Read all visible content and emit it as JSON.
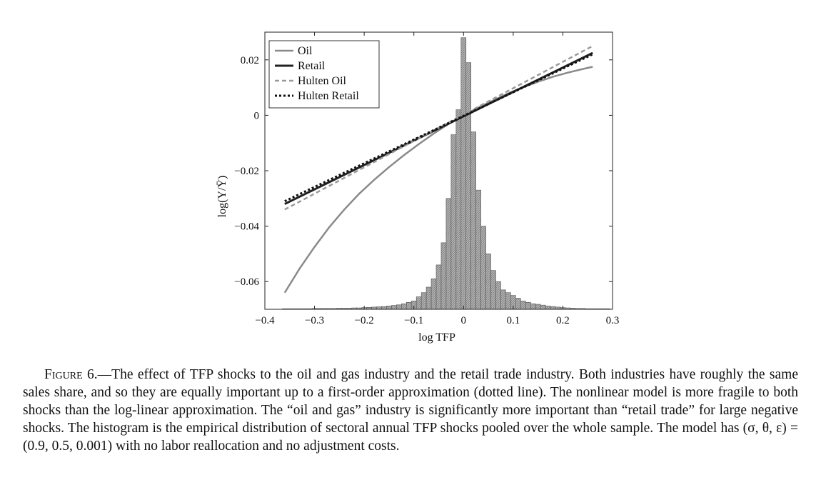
{
  "chart_data": {
    "type": "line",
    "xlabel": "log TFP",
    "ylabel": "log(Y/Ȳ)",
    "xlim": [
      -0.4,
      0.3
    ],
    "ylim": [
      -0.07,
      0.03
    ],
    "x_ticks": [
      {
        "value": -0.4,
        "label": "−0.4"
      },
      {
        "value": -0.3,
        "label": "−0.3"
      },
      {
        "value": -0.2,
        "label": "−0.2"
      },
      {
        "value": -0.1,
        "label": "−0.1"
      },
      {
        "value": 0,
        "label": "0"
      },
      {
        "value": 0.1,
        "label": "0.1"
      },
      {
        "value": 0.2,
        "label": "0.2"
      },
      {
        "value": 0.3,
        "label": "0.3"
      }
    ],
    "y_ticks": [
      {
        "value": 0.02,
        "label": "0.02"
      },
      {
        "value": 0,
        "label": "0"
      },
      {
        "value": -0.02,
        "label": "−0.02"
      },
      {
        "value": -0.04,
        "label": "−0.04"
      },
      {
        "value": -0.06,
        "label": "−0.06"
      }
    ],
    "grid": false,
    "legend_position": "top-left",
    "series": [
      {
        "name": "Oil",
        "style": "solid",
        "color": "#8a8a8a",
        "width": 2.5,
        "x": [
          -0.36,
          -0.33,
          -0.3,
          -0.27,
          -0.24,
          -0.21,
          -0.18,
          -0.15,
          -0.12,
          -0.09,
          -0.06,
          -0.03,
          0,
          0.03,
          0.06,
          0.09,
          0.12,
          0.15,
          0.18,
          0.21,
          0.24,
          0.26
        ],
        "y": [
          -0.064,
          -0.0553,
          -0.0475,
          -0.0403,
          -0.034,
          -0.0283,
          -0.0233,
          -0.0187,
          -0.0144,
          -0.0104,
          -0.0066,
          -0.0031,
          0,
          0.0028,
          0.0054,
          0.0079,
          0.0101,
          0.0121,
          0.0139,
          0.0154,
          0.0167,
          0.0175
        ]
      },
      {
        "name": "Retail",
        "style": "solid",
        "color": "#222222",
        "width": 3,
        "x": [
          -0.36,
          0.26
        ],
        "y": [
          -0.032,
          0.0225
        ]
      },
      {
        "name": "Hulten Oil",
        "style": "dashed",
        "color": "#9a9a9a",
        "width": 2.5,
        "x": [
          -0.36,
          0.26
        ],
        "y": [
          -0.034,
          0.025
        ]
      },
      {
        "name": "Hulten Retail",
        "style": "dotted",
        "color": "#111111",
        "width": 3,
        "x": [
          -0.36,
          0.26
        ],
        "y": [
          -0.031,
          0.022
        ]
      }
    ],
    "histogram": {
      "bin_width": 0.01,
      "bins": [
        [
          -0.36,
          0.0002
        ],
        [
          -0.35,
          0.0002
        ],
        [
          -0.34,
          0.0002
        ],
        [
          -0.33,
          0.0002
        ],
        [
          -0.32,
          0.0002
        ],
        [
          -0.31,
          0.0002
        ],
        [
          -0.3,
          0.0003
        ],
        [
          -0.29,
          0.0003
        ],
        [
          -0.28,
          0.0003
        ],
        [
          -0.27,
          0.0003
        ],
        [
          -0.26,
          0.0003
        ],
        [
          -0.25,
          0.0004
        ],
        [
          -0.24,
          0.0004
        ],
        [
          -0.23,
          0.0004
        ],
        [
          -0.22,
          0.0005
        ],
        [
          -0.21,
          0.0005
        ],
        [
          -0.2,
          0.0006
        ],
        [
          -0.19,
          0.0007
        ],
        [
          -0.18,
          0.0008
        ],
        [
          -0.17,
          0.0009
        ],
        [
          -0.16,
          0.001
        ],
        [
          -0.15,
          0.0012
        ],
        [
          -0.14,
          0.0014
        ],
        [
          -0.13,
          0.0016
        ],
        [
          -0.12,
          0.002
        ],
        [
          -0.11,
          0.0025
        ],
        [
          -0.1,
          0.003
        ],
        [
          -0.09,
          0.0045
        ],
        [
          -0.08,
          0.006
        ],
        [
          -0.07,
          0.008
        ],
        [
          -0.06,
          0.011
        ],
        [
          -0.05,
          0.016
        ],
        [
          -0.04,
          0.024
        ],
        [
          -0.03,
          0.04
        ],
        [
          -0.02,
          0.063
        ],
        [
          -0.01,
          0.072
        ],
        [
          0.0,
          0.098
        ],
        [
          0.01,
          0.089
        ],
        [
          0.02,
          0.064
        ],
        [
          0.03,
          0.043
        ],
        [
          0.04,
          0.03
        ],
        [
          0.05,
          0.02
        ],
        [
          0.06,
          0.014
        ],
        [
          0.07,
          0.01
        ],
        [
          0.08,
          0.007
        ],
        [
          0.09,
          0.006
        ],
        [
          0.1,
          0.005
        ],
        [
          0.11,
          0.004
        ],
        [
          0.12,
          0.003
        ],
        [
          0.13,
          0.0025
        ],
        [
          0.14,
          0.002
        ],
        [
          0.15,
          0.0018
        ],
        [
          0.16,
          0.0015
        ],
        [
          0.17,
          0.0012
        ],
        [
          0.18,
          0.001
        ],
        [
          0.19,
          0.0008
        ],
        [
          0.2,
          0.0006
        ],
        [
          0.21,
          0.0005
        ],
        [
          0.22,
          0.0004
        ],
        [
          0.23,
          0.0003
        ],
        [
          0.24,
          0.0003
        ],
        [
          0.25,
          0.0002
        ],
        [
          0.26,
          0.0002
        ],
        [
          0.27,
          0.0002
        ],
        [
          0.28,
          0.0002
        ],
        [
          0.29,
          0.0002
        ]
      ]
    }
  },
  "caption": {
    "label": "Figure 6",
    "text": ".—The effect of TFP shocks to the oil and gas industry and the retail trade industry. Both industries have roughly the same sales share, and so they are equally important up to a first-order approximation (dotted line). The nonlinear model is more fragile to both shocks than the log-linear approximation. The “oil and gas” industry is significantly more important than “retail trade” for large negative shocks. The histogram is the empirical distribution of sectoral annual TFP shocks pooled over the whole sample. The model has (σ, θ, ε) = (0.9, 0.5, 0.001) with no labor reallocation and no adjustment costs."
  }
}
